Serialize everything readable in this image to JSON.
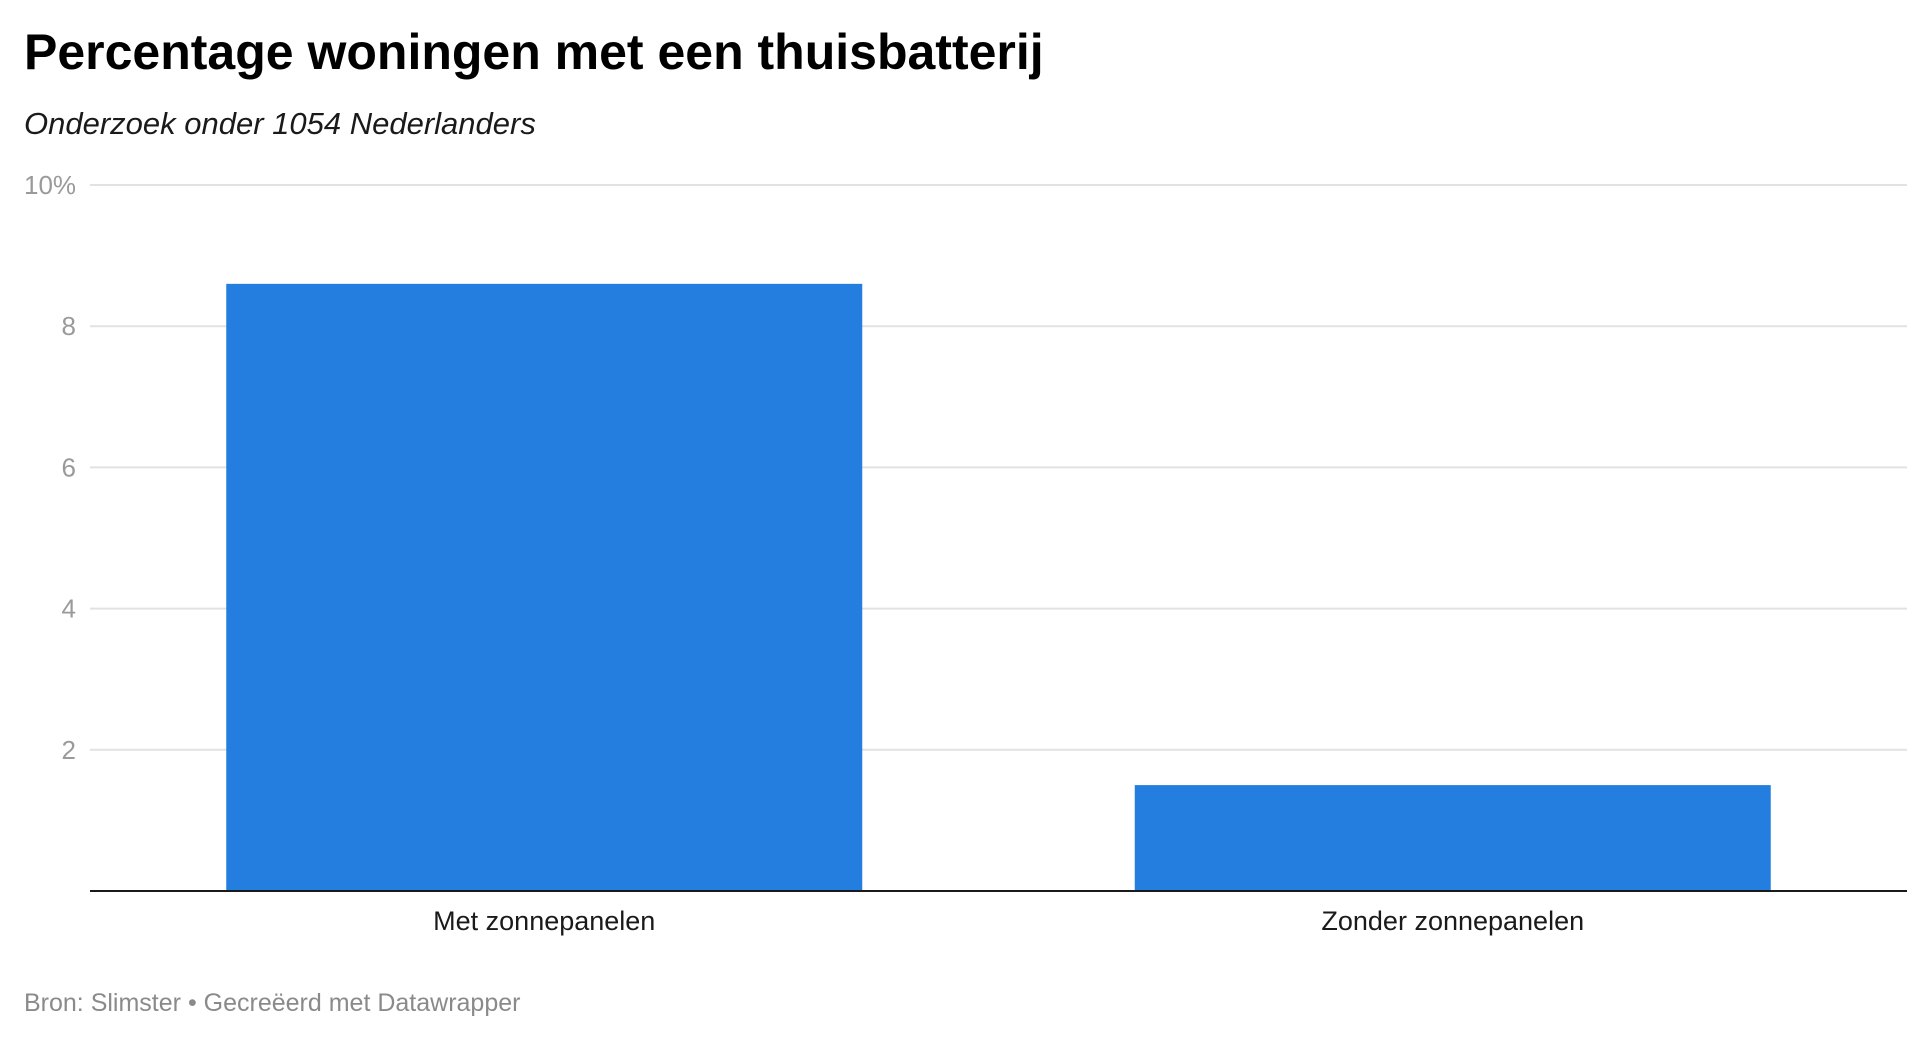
{
  "title": "Percentage woningen met een thuisbatterij",
  "subtitle": "Onderzoek onder 1054 Nederlanders",
  "footer": {
    "source_label": "Bron: Slimster",
    "separator": "•",
    "credit": "Gecreëerd met Datawrapper"
  },
  "colors": {
    "bar": "#247ee0",
    "grid": "#e2e2e2",
    "axis": "#1a1a1a",
    "tick_label": "#9a9a9a",
    "category_label": "#1a1a1a"
  },
  "chart_data": {
    "type": "bar",
    "title": "Percentage woningen met een thuisbatterij",
    "subtitle": "Onderzoek onder 1054 Nederlanders",
    "categories": [
      "Met zonnepanelen",
      "Zonder zonnepanelen"
    ],
    "values": [
      8.6,
      1.5
    ],
    "ylim": [
      0,
      10
    ],
    "yticks": [
      2,
      4,
      6,
      8,
      10
    ],
    "ytick_labels": [
      "2",
      "4",
      "6",
      "8",
      "10%"
    ],
    "xlabel": "",
    "ylabel": "",
    "grid": true,
    "legend": "none"
  }
}
